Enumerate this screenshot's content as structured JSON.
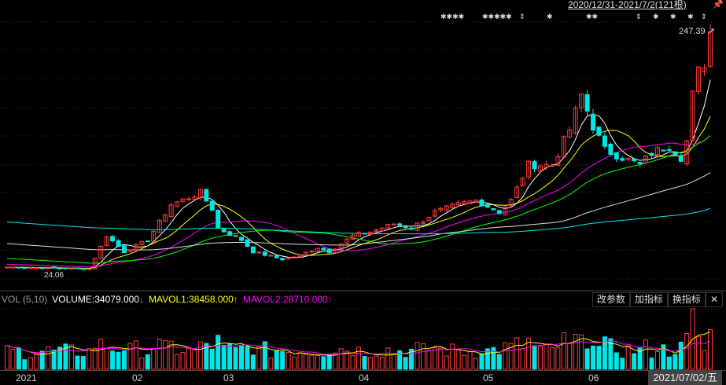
{
  "header": {
    "range": "2020/12/31-2021/7/2(121根)",
    "pin_icon": "pin-icon",
    "marks": [
      "✱✱✱✱",
      "✱✱✱✱✱",
      "⇕",
      "✱",
      "✱✱",
      "⇕",
      "✱",
      "✱",
      "✱",
      "⇕"
    ]
  },
  "price": {
    "high_label": "247.39",
    "low_label": "24.06"
  },
  "volume": {
    "name": "VOL (5,10)",
    "volume": "VOLUME:34079.000",
    "mavol1": "MAVOL1:38458.000",
    "mavol2": "MAVOL2:28710.000",
    "arrow_down": "↓",
    "arrow_up": "↑",
    "buttons": [
      "改参数",
      "加指标",
      "换指标",
      "✕"
    ]
  },
  "axis": {
    "labels": [
      "2021",
      "02",
      "03",
      "04",
      "05",
      "06"
    ],
    "current_date": "2021/07/02/五"
  },
  "colors": {
    "up": "#ff3c3c",
    "down": "#00e5e5",
    "ma5": "#ffffff",
    "ma10": "#ffff00",
    "ma20": "#ff00ff",
    "ma30": "#00ff00",
    "ma60": "#dddddd",
    "ma120": "#00e5e5"
  },
  "chart_data": {
    "type": "candlestick",
    "bars": 121,
    "close_keypoints": [
      [
        0,
        27.7
      ],
      [
        14,
        26
      ],
      [
        17,
        57
      ],
      [
        20,
        42
      ],
      [
        24,
        53
      ],
      [
        28,
        86
      ],
      [
        33,
        97
      ],
      [
        35,
        82
      ],
      [
        36,
        64
      ],
      [
        40,
        53
      ],
      [
        42,
        42
      ],
      [
        47,
        35
      ],
      [
        50,
        38.6
      ],
      [
        53,
        46
      ],
      [
        55,
        42
      ],
      [
        59,
        57
      ],
      [
        62,
        60.6
      ],
      [
        66,
        68
      ],
      [
        69,
        64
      ],
      [
        73,
        79
      ],
      [
        77,
        86
      ],
      [
        80,
        90
      ],
      [
        84,
        79
      ],
      [
        86,
        90
      ],
      [
        89,
        123
      ],
      [
        93,
        123
      ],
      [
        96,
        156
      ],
      [
        98,
        188
      ],
      [
        100,
        159
      ],
      [
        102,
        137
      ],
      [
        105,
        130
      ],
      [
        108,
        123
      ],
      [
        110,
        134
      ],
      [
        113,
        141
      ],
      [
        115,
        130
      ],
      [
        116,
        145
      ],
      [
        117,
        188
      ],
      [
        118,
        210
      ],
      [
        119,
        218
      ],
      [
        120,
        247
      ]
    ],
    "ylim": [
      24,
      247.39
    ],
    "last_volume": 34079
  }
}
